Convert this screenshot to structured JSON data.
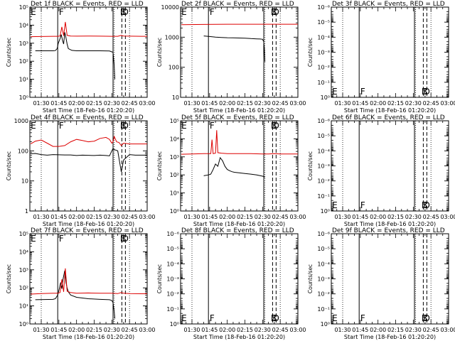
{
  "figure": {
    "x_axis_title": "Start Time (18-Feb-16 01:20:20)",
    "y_axis_title": "Counts/sec",
    "x_ticks": [
      "01:30",
      "01:45",
      "02:00",
      "02:15",
      "02:30",
      "02:45",
      "03:00"
    ],
    "x_tick_minutes": [
      30,
      45,
      60,
      75,
      90,
      105,
      120
    ],
    "x_range_minutes": [
      20.33,
      120
    ],
    "markers": {
      "dotted_minutes": [
        30,
        92,
        105
      ],
      "solid_minutes": [
        44,
        91
      ],
      "dashed_minutes": [
        98.5,
        101.5
      ],
      "letter_labels": [
        {
          "text": "E",
          "minute": 21
        },
        {
          "text": "F",
          "minute": 45
        },
        {
          "text": "B",
          "minute": 97
        },
        {
          "text": "D",
          "minute": 98.6
        }
      ]
    },
    "colors": {
      "events": "#000000",
      "lld": "#dd0000",
      "axes": "#000000"
    }
  },
  "chart_data": [
    {
      "type": "line",
      "title": "Det 1f BLACK = Events, RED = LLD",
      "ylabel": "Counts/sec",
      "xlabel": "Start Time (18-Feb-16 01:20:20)",
      "yscale": "log",
      "ylim": [
        1,
        100000
      ],
      "y_ticks": [
        "10⁰",
        "10¹",
        "10²",
        "10³",
        "10⁴",
        "10⁵"
      ],
      "y_tick_values": [
        1,
        10,
        100,
        1000,
        10000,
        100000
      ],
      "has_data": true,
      "series": [
        {
          "name": "Events",
          "x": [
            25,
            40,
            42,
            43.5,
            44.5,
            46,
            47,
            48,
            49,
            50,
            51,
            52,
            53,
            56,
            60,
            70,
            80,
            88,
            90,
            91,
            92,
            92.5
          ],
          "y": [
            380,
            380,
            390,
            500,
            1000,
            1800,
            3000,
            1500,
            900,
            4000,
            2000,
            900,
            500,
            400,
            380,
            380,
            380,
            370,
            330,
            310,
            60,
            10
          ]
        },
        {
          "name": "LLD",
          "x": [
            21,
            30,
            40,
            44,
            46,
            47.5,
            49,
            50.5,
            52,
            55,
            60,
            70,
            80,
            90,
            95,
            98,
            100,
            105,
            115,
            120
          ],
          "y": [
            2300,
            2350,
            2400,
            2400,
            2500,
            8000,
            2600,
            15000,
            2700,
            2500,
            2450,
            2500,
            2450,
            2400,
            2400,
            2700,
            2500,
            2450,
            2400,
            2400
          ]
        }
      ]
    },
    {
      "type": "line",
      "title": "Det 2f BLACK = Events, RED = LLD",
      "ylabel": "Counts/sec",
      "xlabel": "Start Time (18-Feb-16 01:20:20)",
      "yscale": "log",
      "ylim": [
        10,
        10000
      ],
      "y_ticks": [
        "10",
        "100",
        "1000",
        "10000"
      ],
      "y_tick_values": [
        10,
        100,
        1000,
        10000
      ],
      "has_data": true,
      "series": [
        {
          "name": "Events",
          "x": [
            40,
            45,
            50,
            55,
            60,
            65,
            70,
            75,
            80,
            85,
            88,
            90,
            91,
            91.5,
            92
          ],
          "y": [
            1100,
            1050,
            1000,
            980,
            960,
            950,
            940,
            930,
            900,
            880,
            870,
            850,
            700,
            400,
            150
          ]
        },
        {
          "name": "LLD",
          "x": [
            21,
            40,
            60,
            80,
            92,
            100,
            120
          ],
          "y": [
            2600,
            2650,
            2700,
            2700,
            2700,
            2700,
            2700
          ]
        }
      ]
    },
    {
      "type": "line",
      "title": "Det 3f BLACK = Events, RED = LLD",
      "ylabel": "Counts/sec",
      "xlabel": "Start Time (18-Feb-16 01:20:20)",
      "yscale": "log",
      "ylim": [
        1,
        1e-06
      ],
      "y_ticks": [
        "10⁰",
        "10⁻¹",
        "10⁻²",
        "10⁻³",
        "10⁻⁴",
        "10⁻⁵",
        "10⁻⁶"
      ],
      "y_tick_values": [
        1,
        0.1,
        0.01,
        0.001,
        0.0001,
        1e-05,
        1e-06
      ],
      "has_data": false,
      "series": [
        {
          "name": "Events",
          "x": [],
          "y": []
        },
        {
          "name": "LLD",
          "x": [],
          "y": []
        }
      ]
    },
    {
      "type": "line",
      "title": "Det 4f BLACK = Events, RED = LLD",
      "ylabel": "Counts/sec",
      "xlabel": "Start Time (18-Feb-16 01:20:20)",
      "yscale": "log",
      "ylim": [
        1,
        1000
      ],
      "y_ticks": [
        "1",
        "10",
        "100",
        "1000"
      ],
      "y_tick_values": [
        1,
        10,
        100,
        1000
      ],
      "has_data": true,
      "series": [
        {
          "name": "Events",
          "x": [
            21,
            25,
            30,
            35,
            40,
            45,
            50,
            55,
            60,
            65,
            70,
            75,
            80,
            85,
            88,
            90,
            91,
            92,
            95,
            98,
            100,
            105,
            110,
            120
          ],
          "y": [
            80,
            82,
            75,
            72,
            75,
            74,
            73,
            73,
            70,
            72,
            71,
            70,
            72,
            70,
            68,
            100,
            120,
            110,
            100,
            20,
            50,
            75,
            72,
            72
          ]
        },
        {
          "name": "LLD",
          "x": [
            21,
            25,
            30,
            35,
            40,
            45,
            50,
            55,
            60,
            65,
            70,
            75,
            80,
            85,
            88,
            90,
            91,
            92,
            94,
            96,
            98,
            100,
            105,
            110,
            120
          ],
          "y": [
            170,
            210,
            230,
            180,
            140,
            140,
            150,
            200,
            240,
            220,
            200,
            210,
            260,
            280,
            240,
            180,
            200,
            300,
            200,
            190,
            150,
            180,
            170,
            170,
            170
          ]
        }
      ]
    },
    {
      "type": "line",
      "title": "Det 5f BLACK = Events, RED = LLD",
      "ylabel": "Counts/sec",
      "xlabel": "Start Time (18-Feb-16 01:20:20)",
      "yscale": "log",
      "ylim": [
        1,
        100000
      ],
      "y_ticks": [
        "10⁰",
        "10¹",
        "10²",
        "10³",
        "10⁴",
        "10⁵"
      ],
      "y_tick_values": [
        1,
        10,
        100,
        1000,
        10000,
        100000
      ],
      "has_data": true,
      "series": [
        {
          "name": "Events",
          "x": [
            40,
            44,
            46,
            48,
            50,
            52,
            54,
            56,
            58,
            60,
            62,
            64,
            66,
            70,
            75,
            80,
            85,
            90,
            91,
            92
          ],
          "y": [
            90,
            100,
            110,
            200,
            400,
            300,
            900,
            600,
            300,
            200,
            170,
            150,
            140,
            130,
            120,
            110,
            100,
            85,
            80,
            75
          ]
        },
        {
          "name": "LLD",
          "x": [
            21,
            30,
            40,
            44,
            46,
            47,
            48,
            50,
            51,
            52,
            55,
            60,
            70,
            80,
            90,
            95,
            100,
            105,
            120
          ],
          "y": [
            1400,
            1450,
            1500,
            1500,
            1500,
            9000,
            1500,
            1600,
            30000,
            1700,
            1600,
            1500,
            1500,
            1500,
            1450,
            1450,
            1500,
            1450,
            1450
          ]
        }
      ]
    },
    {
      "type": "line",
      "title": "Det 6f BLACK = Events, RED = LLD",
      "ylabel": "Counts/sec",
      "xlabel": "Start Time (18-Feb-16 01:20:20)",
      "yscale": "log",
      "ylim": [
        1,
        1e-06
      ],
      "y_ticks": [
        "10⁰",
        "10⁻¹",
        "10⁻²",
        "10⁻³",
        "10⁻⁴",
        "10⁻⁵",
        "10⁻⁶"
      ],
      "y_tick_values": [
        1,
        0.1,
        0.01,
        0.001,
        0.0001,
        1e-05,
        1e-06
      ],
      "has_data": false,
      "series": [
        {
          "name": "Events",
          "x": [],
          "y": []
        },
        {
          "name": "LLD",
          "x": [],
          "y": []
        }
      ]
    },
    {
      "type": "line",
      "title": "Det 7f BLACK = Events, RED = LLD",
      "ylabel": "Counts/sec",
      "xlabel": "Start Time (18-Feb-16 01:20:20)",
      "yscale": "log",
      "ylim": [
        1,
        100000
      ],
      "y_ticks": [
        "10⁰",
        "10¹",
        "10²",
        "10³",
        "10⁴",
        "10⁵"
      ],
      "y_tick_values": [
        1,
        10,
        100,
        1000,
        10000,
        100000
      ],
      "has_data": true,
      "series": [
        {
          "name": "Events",
          "x": [
            25,
            40,
            42,
            44,
            45.5,
            46.5,
            47.5,
            48.5,
            50,
            51,
            52,
            53,
            55,
            60,
            70,
            80,
            88,
            90,
            91,
            92,
            92.5
          ],
          "y": [
            22,
            23,
            25,
            40,
            100,
            200,
            90,
            300,
            900,
            200,
            100,
            60,
            40,
            30,
            25,
            23,
            22,
            20,
            15,
            5,
            2
          ]
        },
        {
          "name": "LLD",
          "x": [
            21,
            30,
            40,
            44,
            46,
            47.5,
            49,
            50.5,
            52,
            55,
            60,
            70,
            80,
            90,
            95,
            98,
            100,
            105,
            115,
            120
          ],
          "y": [
            45,
            48,
            50,
            50,
            55,
            300,
            60,
            1200,
            65,
            55,
            50,
            52,
            50,
            50,
            48,
            55,
            50,
            48,
            47,
            47
          ]
        }
      ]
    },
    {
      "type": "line",
      "title": "Det 8f BLACK = Events, RED = LLD",
      "ylabel": "Counts/sec",
      "xlabel": "Start Time (18-Feb-16 01:20:20)",
      "yscale": "log",
      "ylim": [
        1,
        1e-06
      ],
      "y_ticks": [
        "10⁰",
        "10⁻¹",
        "10⁻²",
        "10⁻³",
        "10⁻⁴",
        "10⁻⁵",
        "10⁻⁶"
      ],
      "y_tick_values": [
        1,
        0.1,
        0.01,
        0.001,
        0.0001,
        1e-05,
        1e-06
      ],
      "has_data": false,
      "series": [
        {
          "name": "Events",
          "x": [],
          "y": []
        },
        {
          "name": "LLD",
          "x": [],
          "y": []
        }
      ]
    },
    {
      "type": "line",
      "title": "Det 9f BLACK = Events, RED = LLD",
      "ylabel": "Counts/sec",
      "xlabel": "Start Time (18-Feb-16 01:20:20)",
      "yscale": "log",
      "ylim": [
        1,
        1e-06
      ],
      "y_ticks": [
        "10⁰",
        "10⁻¹",
        "10⁻²",
        "10⁻³",
        "10⁻⁴",
        "10⁻⁵",
        "10⁻⁶"
      ],
      "y_tick_values": [
        1,
        0.1,
        0.01,
        0.001,
        0.0001,
        1e-05,
        1e-06
      ],
      "has_data": false,
      "series": [
        {
          "name": "Events",
          "x": [],
          "y": []
        },
        {
          "name": "LLD",
          "x": [],
          "y": []
        }
      ]
    }
  ]
}
